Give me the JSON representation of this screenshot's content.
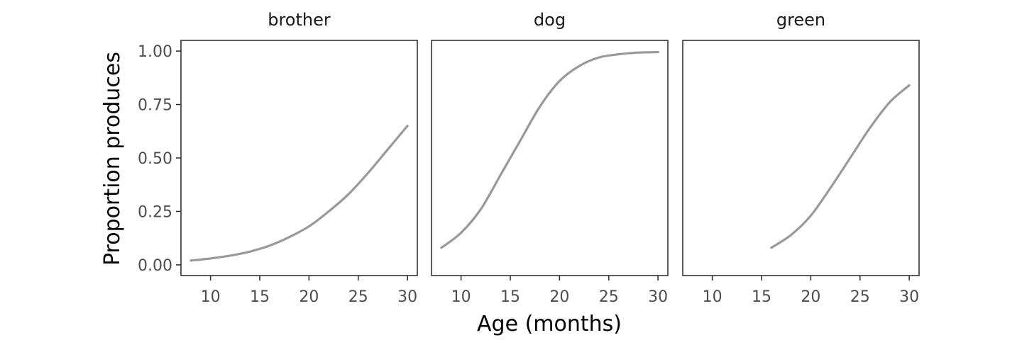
{
  "chart_data": {
    "type": "line",
    "ylabel": "Proportion produces",
    "xlabel": "Age (months)",
    "x_ticks": [
      10,
      15,
      20,
      25,
      30
    ],
    "y_ticks": [
      "0.00",
      "0.25",
      "0.50",
      "0.75",
      "1.00"
    ],
    "y_tick_values": [
      0,
      0.25,
      0.5,
      0.75,
      1.0
    ],
    "xlim": [
      7.0,
      31.0
    ],
    "ylim": [
      -0.05,
      1.05
    ],
    "grid": false,
    "line_color": "#999999",
    "panels": [
      {
        "title": "brother",
        "x": [
          8,
          10,
          12,
          14,
          16,
          18,
          20,
          22,
          24,
          26,
          28,
          30
        ],
        "y": [
          0.02,
          0.03,
          0.043,
          0.062,
          0.09,
          0.13,
          0.18,
          0.25,
          0.33,
          0.43,
          0.54,
          0.65
        ]
      },
      {
        "title": "dog",
        "x": [
          8,
          10,
          12,
          14,
          15,
          16,
          18,
          20,
          22,
          24,
          26,
          28,
          30
        ],
        "y": [
          0.08,
          0.15,
          0.26,
          0.42,
          0.5,
          0.58,
          0.74,
          0.86,
          0.93,
          0.97,
          0.985,
          0.993,
          0.995
        ]
      },
      {
        "title": "green",
        "x": [
          16,
          18,
          20,
          22,
          24,
          26,
          28,
          30
        ],
        "y": [
          0.08,
          0.14,
          0.23,
          0.36,
          0.5,
          0.64,
          0.76,
          0.84
        ]
      }
    ]
  }
}
